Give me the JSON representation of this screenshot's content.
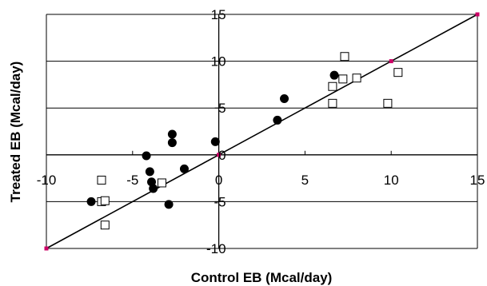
{
  "chart_data": {
    "type": "scatter",
    "title": "",
    "xlabel": "Control EB (Mcal/day)",
    "ylabel": "Treated EB (Mcal/day)",
    "xlim": [
      -10,
      15
    ],
    "ylim": [
      -10,
      15
    ],
    "x_ticks": [
      -10,
      -5,
      0,
      5,
      10,
      15
    ],
    "y_ticks": [
      -10,
      -5,
      0,
      5,
      10,
      15
    ],
    "x_tick_labels": [
      "-10",
      "-5",
      "0",
      "5",
      "10",
      "15"
    ],
    "y_tick_labels": [
      "-10",
      "-5",
      "0",
      "5",
      "10",
      "15"
    ],
    "grid": "horizontal",
    "legend": "none",
    "colors": {
      "filled": "#000000",
      "open": "#000000",
      "line": "#000000",
      "line_marker": "#cc0066"
    },
    "series": [
      {
        "marker": "filled-circle",
        "points": [
          [
            -7.4,
            -5.0
          ],
          [
            -4.2,
            -0.1
          ],
          [
            -4.0,
            -1.8
          ],
          [
            -3.9,
            -2.9
          ],
          [
            -3.8,
            -3.6
          ],
          [
            -2.7,
            2.2
          ],
          [
            -2.7,
            1.3
          ],
          [
            -2.0,
            -1.5
          ],
          [
            -2.9,
            -5.3
          ],
          [
            -0.2,
            1.4
          ],
          [
            3.4,
            3.7
          ],
          [
            3.8,
            6.0
          ],
          [
            6.7,
            8.5
          ]
        ]
      },
      {
        "marker": "open-square",
        "points": [
          [
            -6.8,
            -2.7
          ],
          [
            -6.8,
            -5.0
          ],
          [
            -6.6,
            -4.9
          ],
          [
            -6.6,
            -7.5
          ],
          [
            -3.3,
            -3.0
          ],
          [
            6.6,
            7.3
          ],
          [
            6.6,
            5.5
          ],
          [
            7.2,
            8.1
          ],
          [
            7.3,
            10.5
          ],
          [
            8.0,
            8.2
          ],
          [
            9.8,
            5.5
          ],
          [
            10.4,
            8.8
          ]
        ]
      }
    ],
    "identity_line": {
      "points": [
        [
          -10,
          -10
        ],
        [
          0,
          0
        ],
        [
          10,
          10
        ],
        [
          15,
          15
        ]
      ]
    }
  }
}
